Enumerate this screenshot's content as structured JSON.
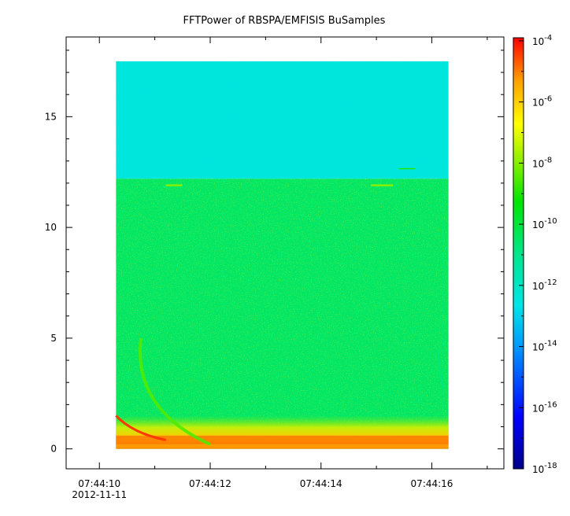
{
  "chart_data": {
    "type": "heatmap",
    "title": "FFTPower of RBSPA/EMFISIS  BuSamples",
    "xlabel": "",
    "ylabel": "",
    "x_ticks": [
      "07:44:10",
      "07:44:12",
      "07:44:14",
      "07:44:16"
    ],
    "x_tick_values_s": [
      10,
      12,
      14,
      16
    ],
    "x_sublabel": "2012-11-11",
    "xlim_s": [
      9.4,
      17.3
    ],
    "y_ticks": [
      0,
      5,
      10,
      15
    ],
    "ylim": [
      -0.9,
      18.6
    ],
    "data_extent": {
      "x_s": [
        10.3,
        16.3
      ],
      "y": [
        0.0,
        17.5
      ]
    },
    "colorbar": {
      "scale": "log",
      "range_exponent": [
        -18,
        -3.9
      ],
      "tick_exponents": [
        -4,
        -6,
        -8,
        -10,
        -12,
        -14,
        -16,
        -18
      ],
      "tick_base": "10"
    },
    "features": [
      {
        "name": "upper band",
        "y_range": [
          12.2,
          17.5
        ],
        "level_exponent": -12.5
      },
      {
        "name": "lower band",
        "y_range": [
          0.0,
          12.2
        ],
        "level_exponent": -10.5
      },
      {
        "name": "low frequency enhancement",
        "y_range": [
          0.0,
          1.5
        ],
        "level_exponent": -8
      },
      {
        "name": "discrete lines near 12",
        "y": 11.9,
        "level_exponent": -8
      },
      {
        "name": "curved dispersive trace",
        "shape": "arc",
        "y_range": [
          0.2,
          5.0
        ],
        "level_exponent": -8.5
      }
    ],
    "legend": "none",
    "grid": false
  }
}
